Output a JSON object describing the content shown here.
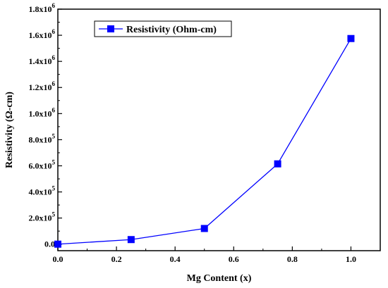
{
  "chart_data": {
    "type": "line",
    "title": "",
    "xlabel": "Mg Content (x)",
    "ylabel": "Resistivity (Ω-cm)",
    "xlim": [
      0.0,
      1.1
    ],
    "ylim": [
      -50000,
      1800000
    ],
    "x_ticks": [
      0.0,
      0.2,
      0.4,
      0.6,
      0.8,
      1.0
    ],
    "x_tick_labels": [
      "0.0",
      "0.2",
      "0.4",
      "0.6",
      "0.8",
      "1.0"
    ],
    "y_ticks": [
      0,
      200000,
      400000,
      600000,
      800000,
      1000000,
      1200000,
      1400000,
      1600000,
      1800000
    ],
    "y_tick_labels": [
      {
        "mantissa": "0.0",
        "exp": ""
      },
      {
        "mantissa": "2.0x10",
        "exp": "5"
      },
      {
        "mantissa": "4.0x10",
        "exp": "5"
      },
      {
        "mantissa": "6.0x10",
        "exp": "5"
      },
      {
        "mantissa": "8.0x10",
        "exp": "5"
      },
      {
        "mantissa": "1.0x10",
        "exp": "6"
      },
      {
        "mantissa": "1.2x10",
        "exp": "6"
      },
      {
        "mantissa": "1.4x10",
        "exp": "6"
      },
      {
        "mantissa": "1.6x10",
        "exp": "6"
      },
      {
        "mantissa": "1.8x10",
        "exp": "6"
      }
    ],
    "legend_position": "top-left",
    "grid": false,
    "series": [
      {
        "name": "Resistivity (Ohm-cm)",
        "color": "#0000ff",
        "marker": "square",
        "x": [
          0.0,
          0.25,
          0.5,
          0.75,
          1.0
        ],
        "values": [
          0,
          35000,
          120000,
          615000,
          1575000
        ]
      }
    ]
  }
}
